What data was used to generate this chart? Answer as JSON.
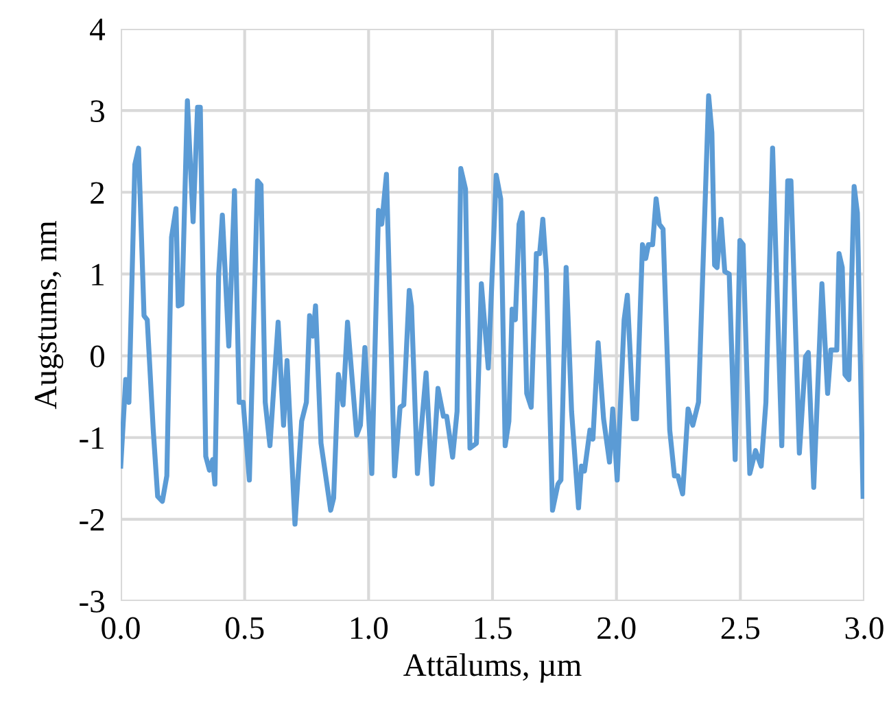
{
  "chart_data": {
    "type": "line",
    "xlabel": "Attālums, µm",
    "ylabel": "Augstums, nm",
    "xlim": [
      0,
      3
    ],
    "ylim": [
      -3,
      4
    ],
    "xticks": [
      {
        "value": 0,
        "label": "0.0"
      },
      {
        "value": 0.5,
        "label": "0.5"
      },
      {
        "value": 1,
        "label": "1.0"
      },
      {
        "value": 1.5,
        "label": "1.5"
      },
      {
        "value": 2,
        "label": "2.0"
      },
      {
        "value": 2.5,
        "label": "2.5"
      },
      {
        "value": 3,
        "label": "3.0"
      }
    ],
    "yticks": [
      -3,
      -2,
      -1,
      0,
      1,
      2,
      3,
      4
    ],
    "grid": true,
    "marker": "none",
    "line_style": "solid",
    "series": [
      {
        "color": "#5b9bd5",
        "x": [
          0.0,
          0.02,
          0.033,
          0.057,
          0.072,
          0.094,
          0.107,
          0.131,
          0.149,
          0.168,
          0.186,
          0.205,
          0.223,
          0.232,
          0.247,
          0.269,
          0.292,
          0.31,
          0.321,
          0.343,
          0.358,
          0.371,
          0.38,
          0.395,
          0.41,
          0.436,
          0.459,
          0.478,
          0.494,
          0.519,
          0.552,
          0.566,
          0.583,
          0.602,
          0.635,
          0.657,
          0.671,
          0.703,
          0.73,
          0.749,
          0.762,
          0.776,
          0.786,
          0.808,
          0.847,
          0.859,
          0.878,
          0.897,
          0.915,
          0.952,
          0.967,
          0.985,
          1.013,
          1.04,
          1.053,
          1.072,
          1.105,
          1.127,
          1.142,
          1.164,
          1.173,
          1.197,
          1.232,
          1.256,
          1.28,
          1.302,
          1.315,
          1.339,
          1.357,
          1.372,
          1.391,
          1.409,
          1.435,
          1.455,
          1.483,
          1.515,
          1.533,
          1.551,
          1.566,
          1.579,
          1.592,
          1.607,
          1.62,
          1.638,
          1.656,
          1.677,
          1.69,
          1.703,
          1.717,
          1.742,
          1.764,
          1.776,
          1.797,
          1.819,
          1.847,
          1.859,
          1.871,
          1.893,
          1.905,
          1.926,
          1.948,
          1.972,
          1.985,
          2.003,
          2.031,
          2.044,
          2.068,
          2.081,
          2.105,
          2.118,
          2.129,
          2.146,
          2.16,
          2.173,
          2.188,
          2.215,
          2.234,
          2.248,
          2.267,
          2.289,
          2.308,
          2.331,
          2.372,
          2.385,
          2.396,
          2.406,
          2.422,
          2.437,
          2.455,
          2.479,
          2.498,
          2.511,
          2.538,
          2.561,
          2.584,
          2.603,
          2.63,
          2.667,
          2.691,
          2.704,
          2.738,
          2.763,
          2.774,
          2.796,
          2.829,
          2.852,
          2.865,
          2.889,
          2.898,
          2.911,
          2.922,
          2.938,
          2.959,
          2.972,
          2.995
        ],
        "values": [
          -1.35,
          -0.29,
          -0.57,
          2.34,
          2.54,
          0.49,
          0.44,
          -0.9,
          -1.72,
          -1.78,
          -1.47,
          1.45,
          1.8,
          0.61,
          0.63,
          3.12,
          1.64,
          3.04,
          3.04,
          -1.23,
          -1.4,
          -1.27,
          -1.57,
          0.99,
          1.72,
          0.12,
          2.02,
          -0.57,
          -0.57,
          -1.52,
          2.14,
          2.09,
          -0.57,
          -1.1,
          0.41,
          -0.85,
          -0.06,
          -2.06,
          -0.8,
          -0.57,
          0.49,
          0.24,
          0.61,
          -1.07,
          -1.89,
          -1.74,
          -0.23,
          -0.6,
          0.41,
          -0.97,
          -0.85,
          0.1,
          -1.44,
          1.78,
          1.61,
          2.22,
          -1.47,
          -0.63,
          -0.6,
          0.8,
          0.61,
          -1.44,
          -0.21,
          -1.57,
          -0.4,
          -0.74,
          -0.74,
          -1.24,
          -0.68,
          2.29,
          2.04,
          -1.13,
          -1.07,
          0.88,
          -0.15,
          2.21,
          1.92,
          -1.1,
          -0.8,
          0.57,
          0.44,
          1.61,
          1.75,
          -0.46,
          -0.63,
          1.25,
          1.25,
          1.67,
          1.05,
          -1.89,
          -1.57,
          -1.52,
          1.08,
          -0.68,
          -1.86,
          -1.35,
          -1.41,
          -0.91,
          -1.02,
          0.16,
          -0.77,
          -1.3,
          -0.65,
          -1.52,
          0.44,
          0.74,
          -0.77,
          -0.77,
          1.36,
          1.19,
          1.36,
          1.36,
          1.92,
          1.61,
          1.55,
          -0.91,
          -1.47,
          -1.47,
          -1.69,
          -0.65,
          -0.85,
          -0.57,
          3.18,
          2.73,
          1.11,
          1.08,
          1.67,
          1.03,
          1.0,
          -1.27,
          1.41,
          1.36,
          -1.44,
          -1.16,
          -1.35,
          -0.57,
          2.54,
          -1.1,
          2.14,
          2.14,
          -1.19,
          -0.01,
          0.04,
          -1.61,
          0.88,
          -0.46,
          0.07,
          0.07,
          1.25,
          1.08,
          -0.23,
          -0.29,
          2.07,
          1.75,
          -1.72
        ]
      }
    ]
  }
}
